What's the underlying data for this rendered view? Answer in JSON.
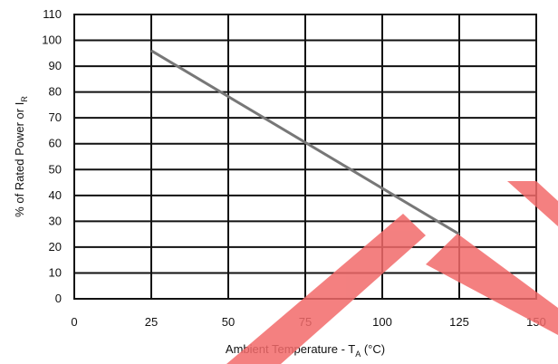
{
  "chart_data": {
    "type": "line",
    "xlabel_main": "Ambient Temperature - T",
    "xlabel_sub": "A",
    "xlabel_tail": " (°C)",
    "ylabel_main": "% of Rated Power or I",
    "ylabel_sub": "R",
    "xlim": [
      0,
      150
    ],
    "ylim": [
      0,
      110
    ],
    "x_ticks": [
      0,
      25,
      50,
      75,
      100,
      125,
      150
    ],
    "y_ticks": [
      0,
      10,
      20,
      30,
      40,
      50,
      60,
      70,
      80,
      90,
      100,
      110
    ],
    "grid": true,
    "series": [
      {
        "x": [
          25,
          125
        ],
        "y": [
          96,
          25
        ],
        "color": "#777777"
      }
    ],
    "watermark_color": "#f26a6a"
  }
}
